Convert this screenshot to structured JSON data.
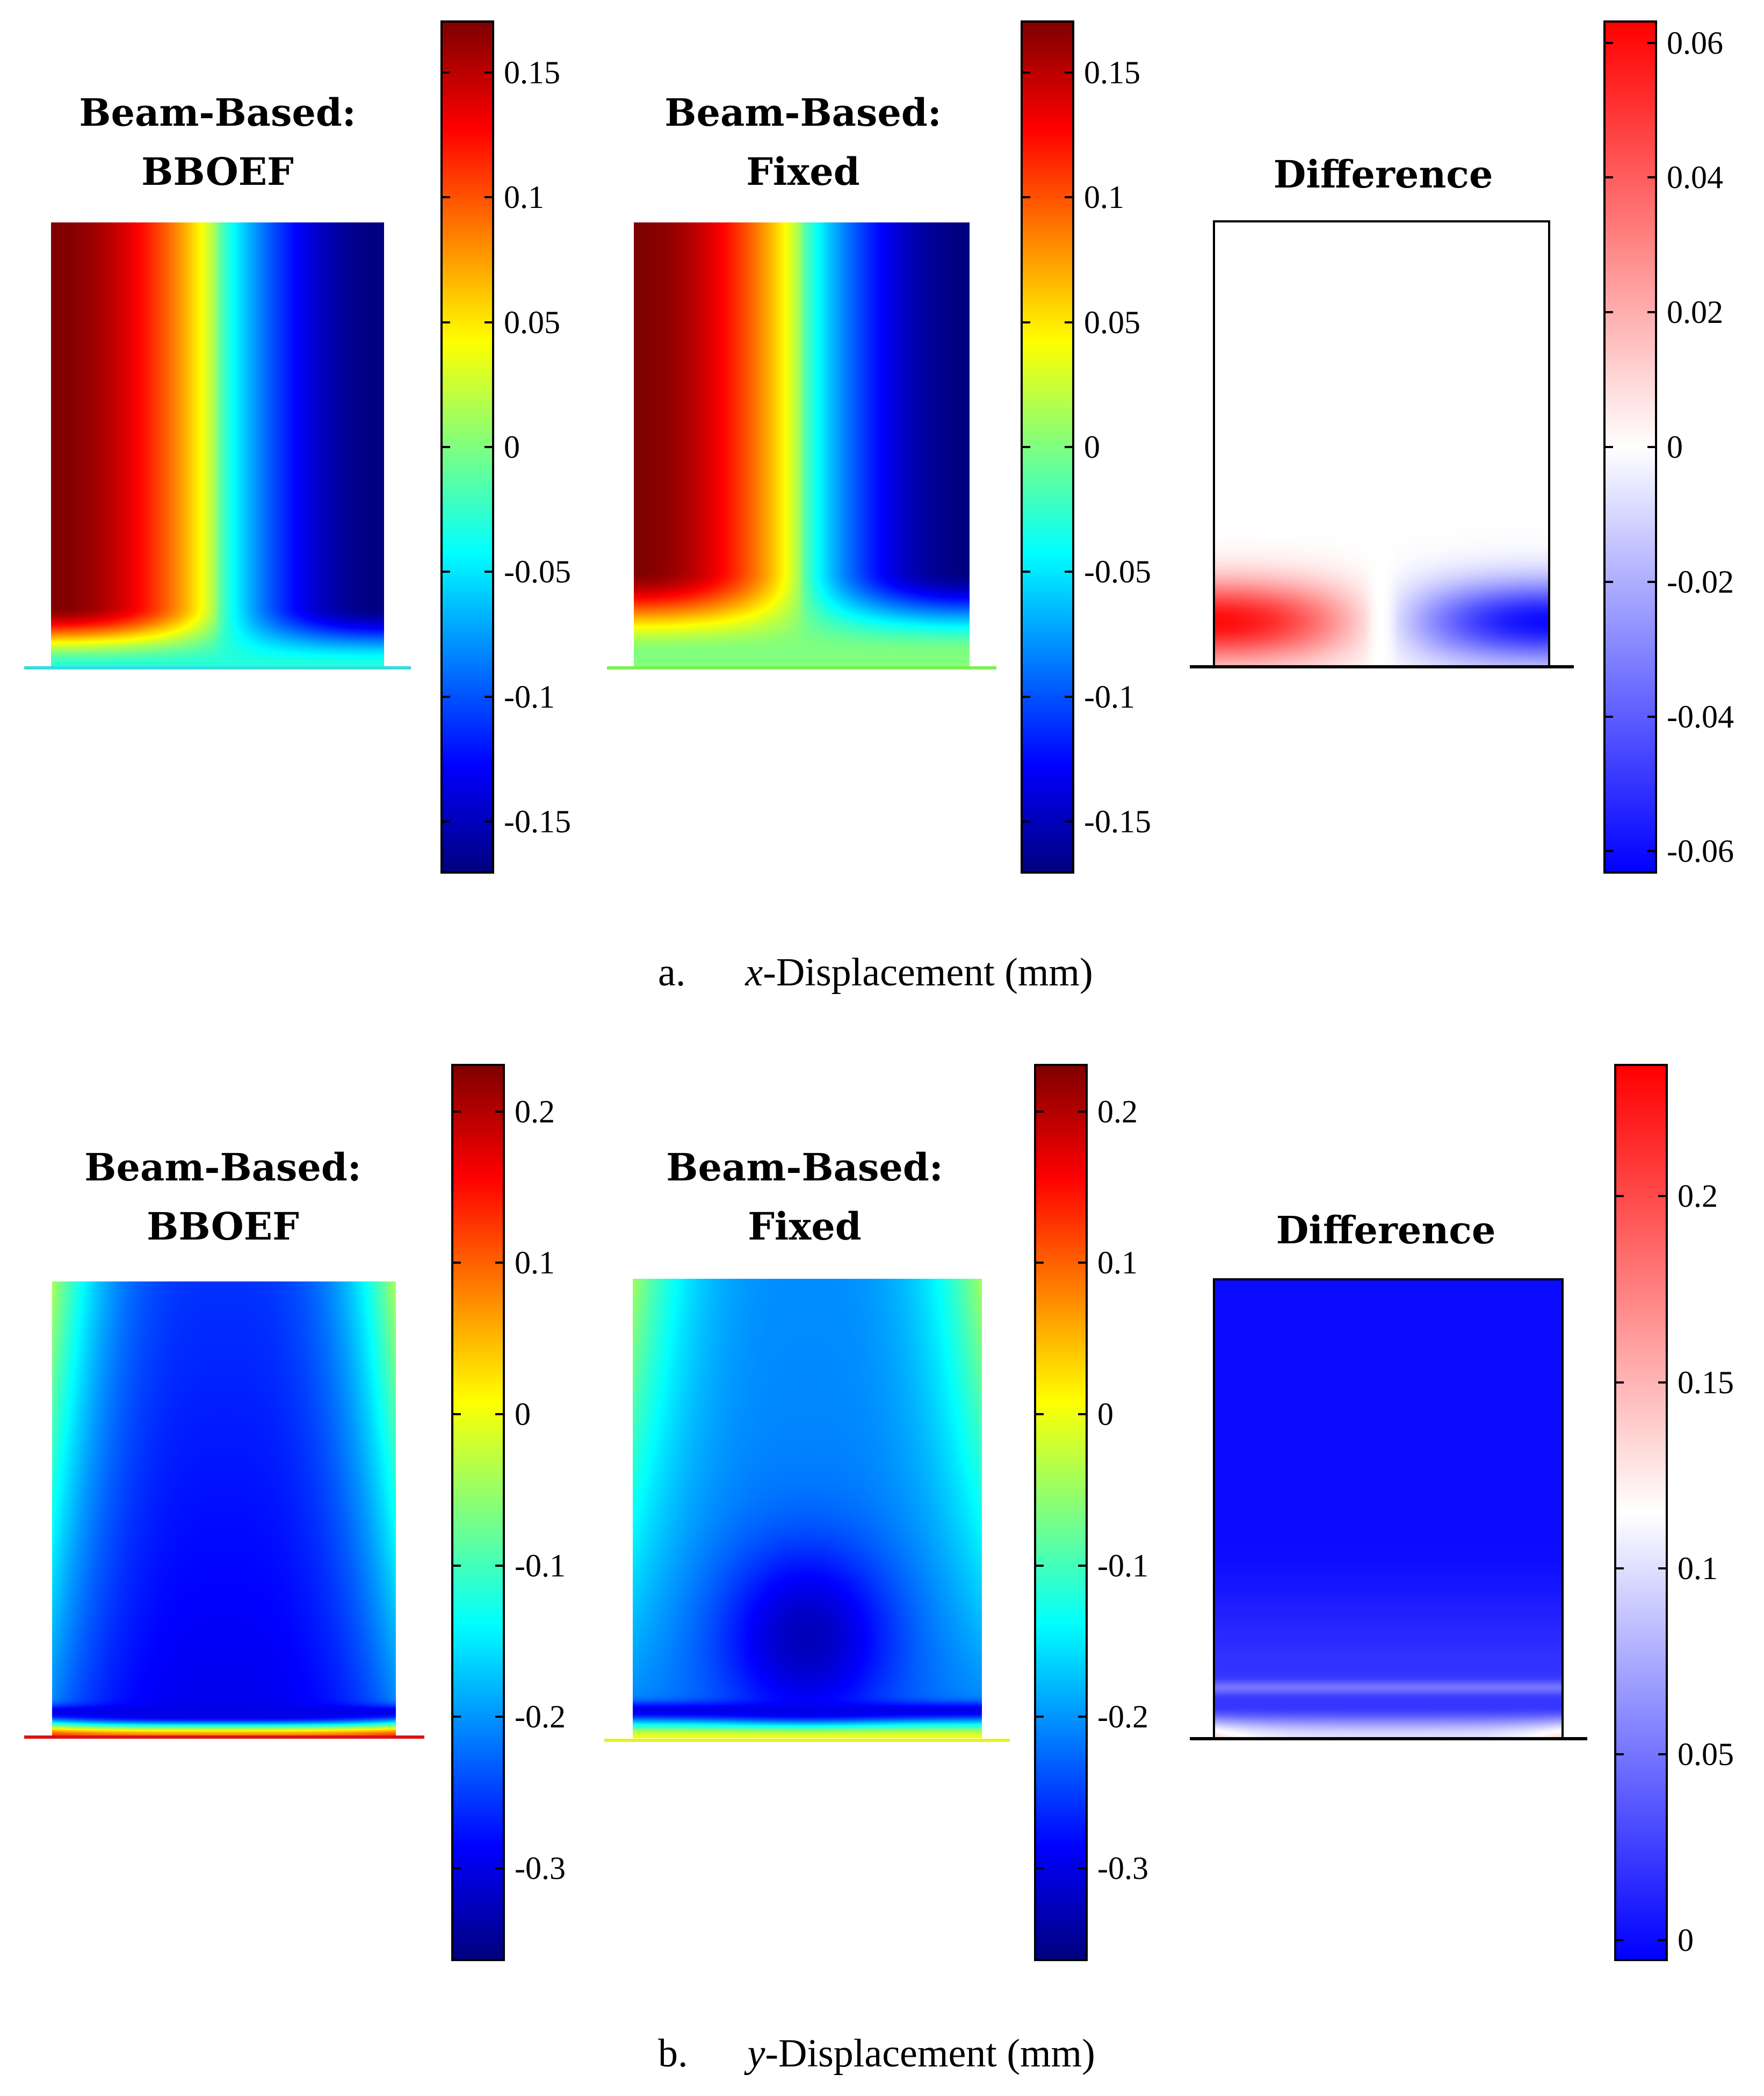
{
  "chart_data": [
    {
      "type": "heatmap",
      "id": "x-bboef",
      "title_lines": [
        "Beam-Based:",
        "BBOEF"
      ],
      "quantity": "x-Displacement (mm)",
      "colormap": "jet",
      "clim": [
        -0.17,
        0.17
      ],
      "ticks": [
        0.15,
        0.1,
        0.05,
        0,
        -0.05,
        -0.1,
        -0.15
      ],
      "tick_labels": [
        "0.15",
        "0.1",
        "0.05",
        "0",
        "-0.05",
        "-0.1",
        "-0.15"
      ],
      "field": {
        "left_value": 0.17,
        "center_value": 0.0,
        "right_value": -0.17,
        "base_value": -0.03
      }
    },
    {
      "type": "heatmap",
      "id": "x-fixed",
      "title_lines": [
        "Beam-Based:",
        "Fixed"
      ],
      "quantity": "x-Displacement (mm)",
      "colormap": "jet",
      "clim": [
        -0.17,
        0.17
      ],
      "ticks": [
        0.15,
        0.1,
        0.05,
        0,
        -0.05,
        -0.1,
        -0.15
      ],
      "tick_labels": [
        "0.15",
        "0.1",
        "0.05",
        "0",
        "-0.05",
        "-0.1",
        "-0.15"
      ],
      "field": {
        "left_value": 0.17,
        "center_value": 0.0,
        "right_value": -0.17,
        "base_value": 0.0
      }
    },
    {
      "type": "heatmap",
      "id": "x-difference",
      "title_lines": [
        "Difference"
      ],
      "quantity": "x-Displacement (mm)",
      "colormap": "blue-white-red",
      "clim": [
        -0.063,
        0.063
      ],
      "ticks": [
        0.06,
        0.04,
        0.02,
        0,
        -0.02,
        -0.04,
        -0.06
      ],
      "tick_labels": [
        "0.06",
        "0.04",
        "0.02",
        "0",
        "-0.02",
        "-0.04",
        "-0.06"
      ],
      "field": {
        "left_value": 0.06,
        "right_value": -0.06,
        "interior_value": 0.0
      }
    },
    {
      "type": "heatmap",
      "id": "y-bboef",
      "title_lines": [
        "Beam-Based:",
        "BBOEF"
      ],
      "quantity": "y-Displacement (mm)",
      "colormap": "jet",
      "clim": [
        -0.36,
        0.23
      ],
      "ticks": [
        0.2,
        0.1,
        0,
        -0.1,
        -0.2,
        -0.3
      ],
      "tick_labels": [
        "0.2",
        "0.1",
        "0",
        "-0.1",
        "-0.2",
        "-0.3"
      ],
      "field": {
        "top_value": -0.18,
        "center_value": -0.3,
        "base_band_value": -0.3,
        "base_value": 0.13
      }
    },
    {
      "type": "heatmap",
      "id": "y-fixed",
      "title_lines": [
        "Beam-Based:",
        "Fixed"
      ],
      "quantity": "y-Displacement (mm)",
      "colormap": "jet",
      "clim": [
        -0.36,
        0.23
      ],
      "ticks": [
        0.2,
        0.1,
        0,
        -0.1,
        -0.2,
        -0.3
      ],
      "tick_labels": [
        "0.2",
        "0.1",
        "0",
        "-0.1",
        "-0.2",
        "-0.3"
      ],
      "field": {
        "top_value": -0.18,
        "center_value": -0.33,
        "base_band_value": -0.3,
        "base_value": 0.0
      }
    },
    {
      "type": "heatmap",
      "id": "y-difference",
      "title_lines": [
        "Difference"
      ],
      "quantity": "y-Displacement (mm)",
      "colormap": "blue-white-red",
      "clim": [
        -0.005,
        0.235
      ],
      "ticks": [
        0.2,
        0.15,
        0.1,
        0.05,
        0
      ],
      "tick_labels": [
        "0.2",
        "0.15",
        "0.1",
        "0.05",
        "0"
      ],
      "field": {
        "interior_value": 0.0,
        "band_value": 0.05,
        "base_value": 0.1
      }
    }
  ],
  "captions": {
    "a": {
      "letter": "a.",
      "var": "x",
      "text": "-Displacement (mm)"
    },
    "b": {
      "letter": "b.",
      "var": "y",
      "text": "-Displacement (mm)"
    }
  }
}
